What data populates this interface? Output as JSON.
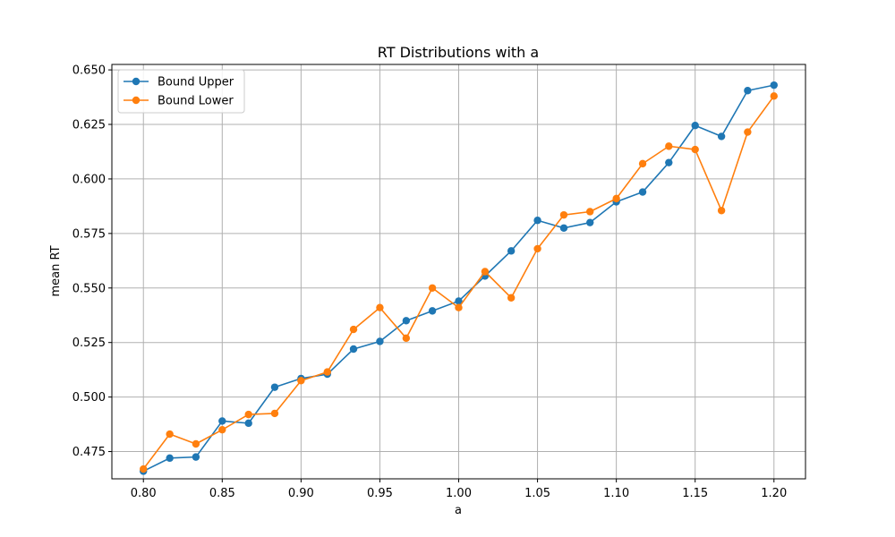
{
  "chart_data": {
    "type": "line",
    "title": "RT Distributions with a",
    "xlabel": "a",
    "ylabel": "mean RT",
    "xlim": [
      0.78,
      1.22
    ],
    "ylim": [
      0.4625,
      0.6525
    ],
    "xticks": [
      0.8,
      0.85,
      0.9,
      0.95,
      1.0,
      1.05,
      1.1,
      1.15,
      1.2
    ],
    "xtick_labels": [
      "0.80",
      "0.85",
      "0.90",
      "0.95",
      "1.00",
      "1.05",
      "1.10",
      "1.15",
      "1.20"
    ],
    "yticks": [
      0.475,
      0.5,
      0.525,
      0.55,
      0.575,
      0.6,
      0.625,
      0.65
    ],
    "ytick_labels": [
      "0.475",
      "0.500",
      "0.525",
      "0.550",
      "0.575",
      "0.600",
      "0.625",
      "0.650"
    ],
    "grid": true,
    "legend_position": "top-left",
    "x": [
      0.8,
      0.8167,
      0.8333,
      0.85,
      0.8667,
      0.8833,
      0.9,
      0.9167,
      0.9333,
      0.95,
      0.9667,
      0.9833,
      1.0,
      1.0167,
      1.0333,
      1.05,
      1.0667,
      1.0833,
      1.1,
      1.1167,
      1.1333,
      1.15,
      1.1667,
      1.1833,
      1.2
    ],
    "series": [
      {
        "name": "Bound Upper",
        "color": "#1f77b4",
        "values": [
          0.466,
          0.472,
          0.4725,
          0.489,
          0.488,
          0.5045,
          0.5085,
          0.5105,
          0.522,
          0.5255,
          0.535,
          0.5395,
          0.544,
          0.5555,
          0.567,
          0.581,
          0.5775,
          0.58,
          0.5895,
          0.594,
          0.6075,
          0.6245,
          0.6195,
          0.6405,
          0.643
        ]
      },
      {
        "name": "Bound Lower",
        "color": "#ff7f0e",
        "values": [
          0.467,
          0.483,
          0.4785,
          0.485,
          0.492,
          0.4925,
          0.5075,
          0.5115,
          0.531,
          0.541,
          0.527,
          0.55,
          0.541,
          0.5575,
          0.5455,
          0.568,
          0.5835,
          0.585,
          0.591,
          0.607,
          0.615,
          0.6135,
          0.5855,
          0.6215,
          0.638
        ]
      }
    ]
  }
}
